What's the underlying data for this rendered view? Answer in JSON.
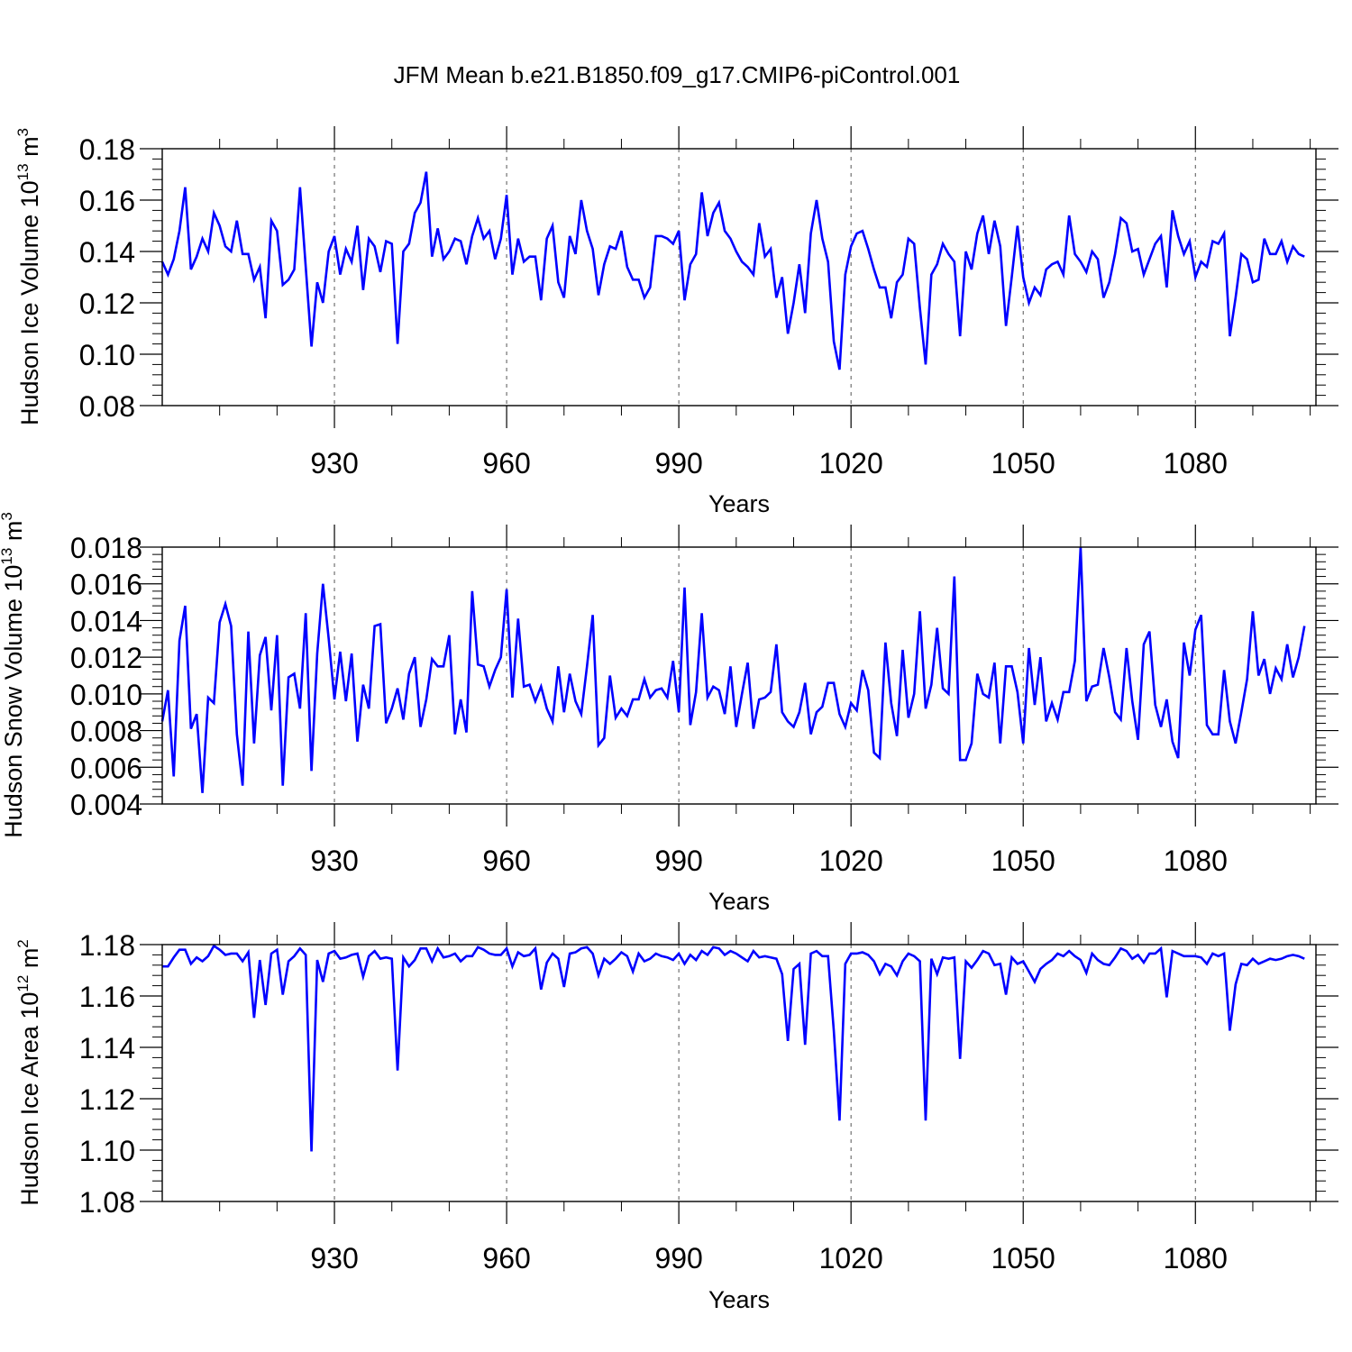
{
  "title": "JFM Mean b.e21.B1850.f09_g17.CMIP6-piControl.001",
  "chart_data": [
    {
      "type": "line",
      "title": "JFM Mean b.e21.B1850.f09_g17.CMIP6-piControl.001",
      "xlabel": "Years",
      "ylabel": "Hudson Ice Volume 10",
      "ylabel_exponent": "13",
      "ylabel_unit": "m",
      "ylabel_unit_exponent": "3",
      "xlim": [
        900,
        1101
      ],
      "ylim": [
        0.08,
        0.18
      ],
      "xticks": [
        930,
        960,
        990,
        1020,
        1050,
        1080
      ],
      "yticks": [
        "0.08",
        "0.10",
        "0.12",
        "0.14",
        "0.16",
        "0.18"
      ],
      "grid": "dashed vertical lines at x ticks",
      "series": [
        {
          "name": "Hudson Ice Volume",
          "color": "#0000ff",
          "x_start": 900,
          "x_step": 1,
          "values": [
            0.136,
            0.131,
            0.137,
            0.148,
            0.165,
            0.133,
            0.138,
            0.145,
            0.14,
            0.155,
            0.15,
            0.142,
            0.14,
            0.152,
            0.139,
            0.139,
            0.129,
            0.134,
            0.114,
            0.152,
            0.148,
            0.127,
            0.129,
            0.133,
            0.165,
            0.134,
            0.103,
            0.128,
            0.12,
            0.14,
            0.146,
            0.131,
            0.141,
            0.136,
            0.15,
            0.125,
            0.145,
            0.142,
            0.132,
            0.144,
            0.143,
            0.104,
            0.14,
            0.143,
            0.155,
            0.159,
            0.171,
            0.138,
            0.149,
            0.137,
            0.14,
            0.145,
            0.144,
            0.135,
            0.146,
            0.153,
            0.145,
            0.148,
            0.137,
            0.145,
            0.162,
            0.131,
            0.145,
            0.136,
            0.138,
            0.138,
            0.121,
            0.145,
            0.15,
            0.128,
            0.122,
            0.146,
            0.139,
            0.16,
            0.148,
            0.141,
            0.123,
            0.135,
            0.142,
            0.141,
            0.148,
            0.134,
            0.129,
            0.129,
            0.122,
            0.126,
            0.146,
            0.146,
            0.145,
            0.143,
            0.148,
            0.121,
            0.135,
            0.139,
            0.163,
            0.146,
            0.155,
            0.159,
            0.148,
            0.145,
            0.14,
            0.136,
            0.134,
            0.131,
            0.151,
            0.138,
            0.141,
            0.122,
            0.13,
            0.108,
            0.12,
            0.135,
            0.116,
            0.147,
            0.16,
            0.145,
            0.136,
            0.105,
            0.094,
            0.131,
            0.142,
            0.147,
            0.148,
            0.141,
            0.133,
            0.126,
            0.126,
            0.114,
            0.128,
            0.131,
            0.145,
            0.143,
            0.118,
            0.096,
            0.131,
            0.135,
            0.143,
            0.139,
            0.136,
            0.107,
            0.14,
            0.133,
            0.147,
            0.154,
            0.139,
            0.152,
            0.142,
            0.111,
            0.13,
            0.15,
            0.13,
            0.12,
            0.126,
            0.123,
            0.133,
            0.135,
            0.136,
            0.131,
            0.154,
            0.139,
            0.136,
            0.132,
            0.14,
            0.137,
            0.122,
            0.128,
            0.139,
            0.153,
            0.151,
            0.14,
            0.141,
            0.131,
            0.137,
            0.143,
            0.146,
            0.126,
            0.156,
            0.146,
            0.139,
            0.144,
            0.13,
            0.136,
            0.134,
            0.144,
            0.143,
            0.147,
            0.107,
            0.122,
            0.139,
            0.137,
            0.128,
            0.129,
            0.145,
            0.139,
            0.139,
            0.144,
            0.136,
            0.142,
            0.139,
            0.138
          ]
        }
      ]
    },
    {
      "type": "line",
      "xlabel": "Years",
      "ylabel": "Hudson Snow Volume 10",
      "ylabel_exponent": "13",
      "ylabel_unit": "m",
      "ylabel_unit_exponent": "3",
      "xlim": [
        900,
        1101
      ],
      "ylim": [
        0.004,
        0.018
      ],
      "xticks": [
        930,
        960,
        990,
        1020,
        1050,
        1080
      ],
      "yticks": [
        "0.004",
        "0.006",
        "0.008",
        "0.010",
        "0.012",
        "0.014",
        "0.016",
        "0.018"
      ],
      "grid": "dashed vertical lines at x ticks",
      "series": [
        {
          "name": "Hudson Snow Volume",
          "color": "#0000ff",
          "x_start": 900,
          "x_step": 1,
          "values": [
            0.0085,
            0.0102,
            0.0055,
            0.0129,
            0.0148,
            0.0081,
            0.0089,
            0.0046,
            0.0098,
            0.0095,
            0.0139,
            0.0149,
            0.0137,
            0.0078,
            0.005,
            0.0134,
            0.0073,
            0.0121,
            0.0131,
            0.0091,
            0.0132,
            0.005,
            0.0109,
            0.0111,
            0.0092,
            0.0144,
            0.0058,
            0.0122,
            0.016,
            0.013,
            0.0097,
            0.0123,
            0.0096,
            0.0122,
            0.0074,
            0.0105,
            0.0092,
            0.0137,
            0.0138,
            0.0084,
            0.0092,
            0.0103,
            0.0086,
            0.0111,
            0.012,
            0.0082,
            0.0097,
            0.0119,
            0.0115,
            0.0115,
            0.0132,
            0.0078,
            0.0097,
            0.0079,
            0.0156,
            0.0116,
            0.0115,
            0.0104,
            0.0113,
            0.012,
            0.0157,
            0.0098,
            0.0141,
            0.0104,
            0.0105,
            0.0096,
            0.0104,
            0.0092,
            0.0085,
            0.0115,
            0.009,
            0.0111,
            0.0096,
            0.0089,
            0.0115,
            0.0143,
            0.0072,
            0.0076,
            0.011,
            0.0087,
            0.0092,
            0.0088,
            0.0097,
            0.0097,
            0.0108,
            0.0098,
            0.0102,
            0.0103,
            0.0098,
            0.0118,
            0.009,
            0.0158,
            0.0083,
            0.0101,
            0.0144,
            0.0098,
            0.0104,
            0.0102,
            0.0089,
            0.0115,
            0.0082,
            0.01,
            0.0117,
            0.0081,
            0.0097,
            0.0098,
            0.0101,
            0.0127,
            0.009,
            0.0085,
            0.0082,
            0.009,
            0.0106,
            0.0078,
            0.009,
            0.0093,
            0.0106,
            0.0106,
            0.0089,
            0.0082,
            0.0095,
            0.0091,
            0.0113,
            0.0102,
            0.0068,
            0.0065,
            0.0128,
            0.0095,
            0.0077,
            0.0124,
            0.0087,
            0.01,
            0.0145,
            0.0092,
            0.0105,
            0.0136,
            0.0103,
            0.01,
            0.0164,
            0.0064,
            0.0064,
            0.0073,
            0.0111,
            0.01,
            0.0098,
            0.0117,
            0.0073,
            0.0115,
            0.0115,
            0.0101,
            0.0073,
            0.0125,
            0.0094,
            0.012,
            0.0085,
            0.0095,
            0.0086,
            0.0101,
            0.0101,
            0.0118,
            0.018,
            0.0096,
            0.0104,
            0.0105,
            0.0125,
            0.0109,
            0.009,
            0.0086,
            0.0125,
            0.0096,
            0.0075,
            0.0127,
            0.0134,
            0.0094,
            0.0082,
            0.0097,
            0.0074,
            0.0065,
            0.0128,
            0.011,
            0.0135,
            0.0143,
            0.0083,
            0.0078,
            0.0078,
            0.0113,
            0.0085,
            0.0073,
            0.009,
            0.0108,
            0.0145,
            0.011,
            0.0119,
            0.01,
            0.0114,
            0.0108,
            0.0127,
            0.0109,
            0.012,
            0.0137
          ]
        }
      ]
    },
    {
      "type": "line",
      "xlabel": "Years",
      "ylabel": "Hudson Ice Area 10",
      "ylabel_exponent": "12",
      "ylabel_unit": "m",
      "ylabel_unit_exponent": "2",
      "xlim": [
        900,
        1101
      ],
      "ylim": [
        1.08,
        1.18
      ],
      "xticks": [
        930,
        960,
        990,
        1020,
        1050,
        1080
      ],
      "yticks": [
        "1.08",
        "1.10",
        "1.12",
        "1.14",
        "1.16",
        "1.18"
      ],
      "grid": "dashed vertical lines at x ticks",
      "series": [
        {
          "name": "Hudson Ice Area",
          "color": "#0000ff",
          "x_start": 900,
          "x_step": 1,
          "values": [
            1.1715,
            1.1715,
            1.175,
            1.178,
            1.178,
            1.1725,
            1.175,
            1.1735,
            1.1755,
            1.1795,
            1.178,
            1.176,
            1.1765,
            1.1765,
            1.1735,
            1.177,
            1.1515,
            1.174,
            1.1565,
            1.1765,
            1.178,
            1.1605,
            1.1735,
            1.1755,
            1.1785,
            1.176,
            1.0995,
            1.174,
            1.1655,
            1.1765,
            1.1775,
            1.1745,
            1.175,
            1.176,
            1.1765,
            1.1675,
            1.1755,
            1.1775,
            1.1745,
            1.175,
            1.1745,
            1.131,
            1.175,
            1.1715,
            1.174,
            1.1785,
            1.1785,
            1.1735,
            1.1785,
            1.175,
            1.1755,
            1.1765,
            1.1735,
            1.1755,
            1.1755,
            1.179,
            1.178,
            1.1765,
            1.176,
            1.176,
            1.1785,
            1.1715,
            1.177,
            1.1755,
            1.176,
            1.1785,
            1.1625,
            1.173,
            1.1765,
            1.1745,
            1.1635,
            1.1765,
            1.177,
            1.1785,
            1.179,
            1.1765,
            1.168,
            1.1745,
            1.1725,
            1.1745,
            1.177,
            1.1755,
            1.1695,
            1.1765,
            1.1735,
            1.1745,
            1.1765,
            1.1755,
            1.175,
            1.174,
            1.1765,
            1.1725,
            1.176,
            1.174,
            1.1775,
            1.176,
            1.179,
            1.1785,
            1.176,
            1.1775,
            1.1765,
            1.175,
            1.1735,
            1.1775,
            1.175,
            1.1755,
            1.175,
            1.1745,
            1.1685,
            1.1425,
            1.1705,
            1.1725,
            1.141,
            1.1765,
            1.1775,
            1.1755,
            1.1755,
            1.1465,
            1.1115,
            1.1725,
            1.1765,
            1.1765,
            1.177,
            1.176,
            1.1735,
            1.1685,
            1.1725,
            1.1715,
            1.168,
            1.1735,
            1.1765,
            1.1755,
            1.1735,
            1.1115,
            1.1745,
            1.1685,
            1.175,
            1.1745,
            1.175,
            1.1355,
            1.1735,
            1.171,
            1.174,
            1.1775,
            1.1765,
            1.172,
            1.1725,
            1.1605,
            1.175,
            1.1725,
            1.1735,
            1.1695,
            1.1655,
            1.1705,
            1.1725,
            1.174,
            1.1765,
            1.1755,
            1.1775,
            1.1755,
            1.174,
            1.169,
            1.1765,
            1.174,
            1.1725,
            1.172,
            1.175,
            1.1785,
            1.1775,
            1.1745,
            1.176,
            1.173,
            1.1765,
            1.1765,
            1.1785,
            1.1595,
            1.1775,
            1.1765,
            1.1755,
            1.1755,
            1.1755,
            1.175,
            1.1725,
            1.1765,
            1.1755,
            1.1765,
            1.1465,
            1.1645,
            1.1725,
            1.172,
            1.1745,
            1.1725,
            1.1735,
            1.1745,
            1.174,
            1.1745,
            1.1755,
            1.176,
            1.1755,
            1.1745
          ]
        }
      ]
    }
  ]
}
